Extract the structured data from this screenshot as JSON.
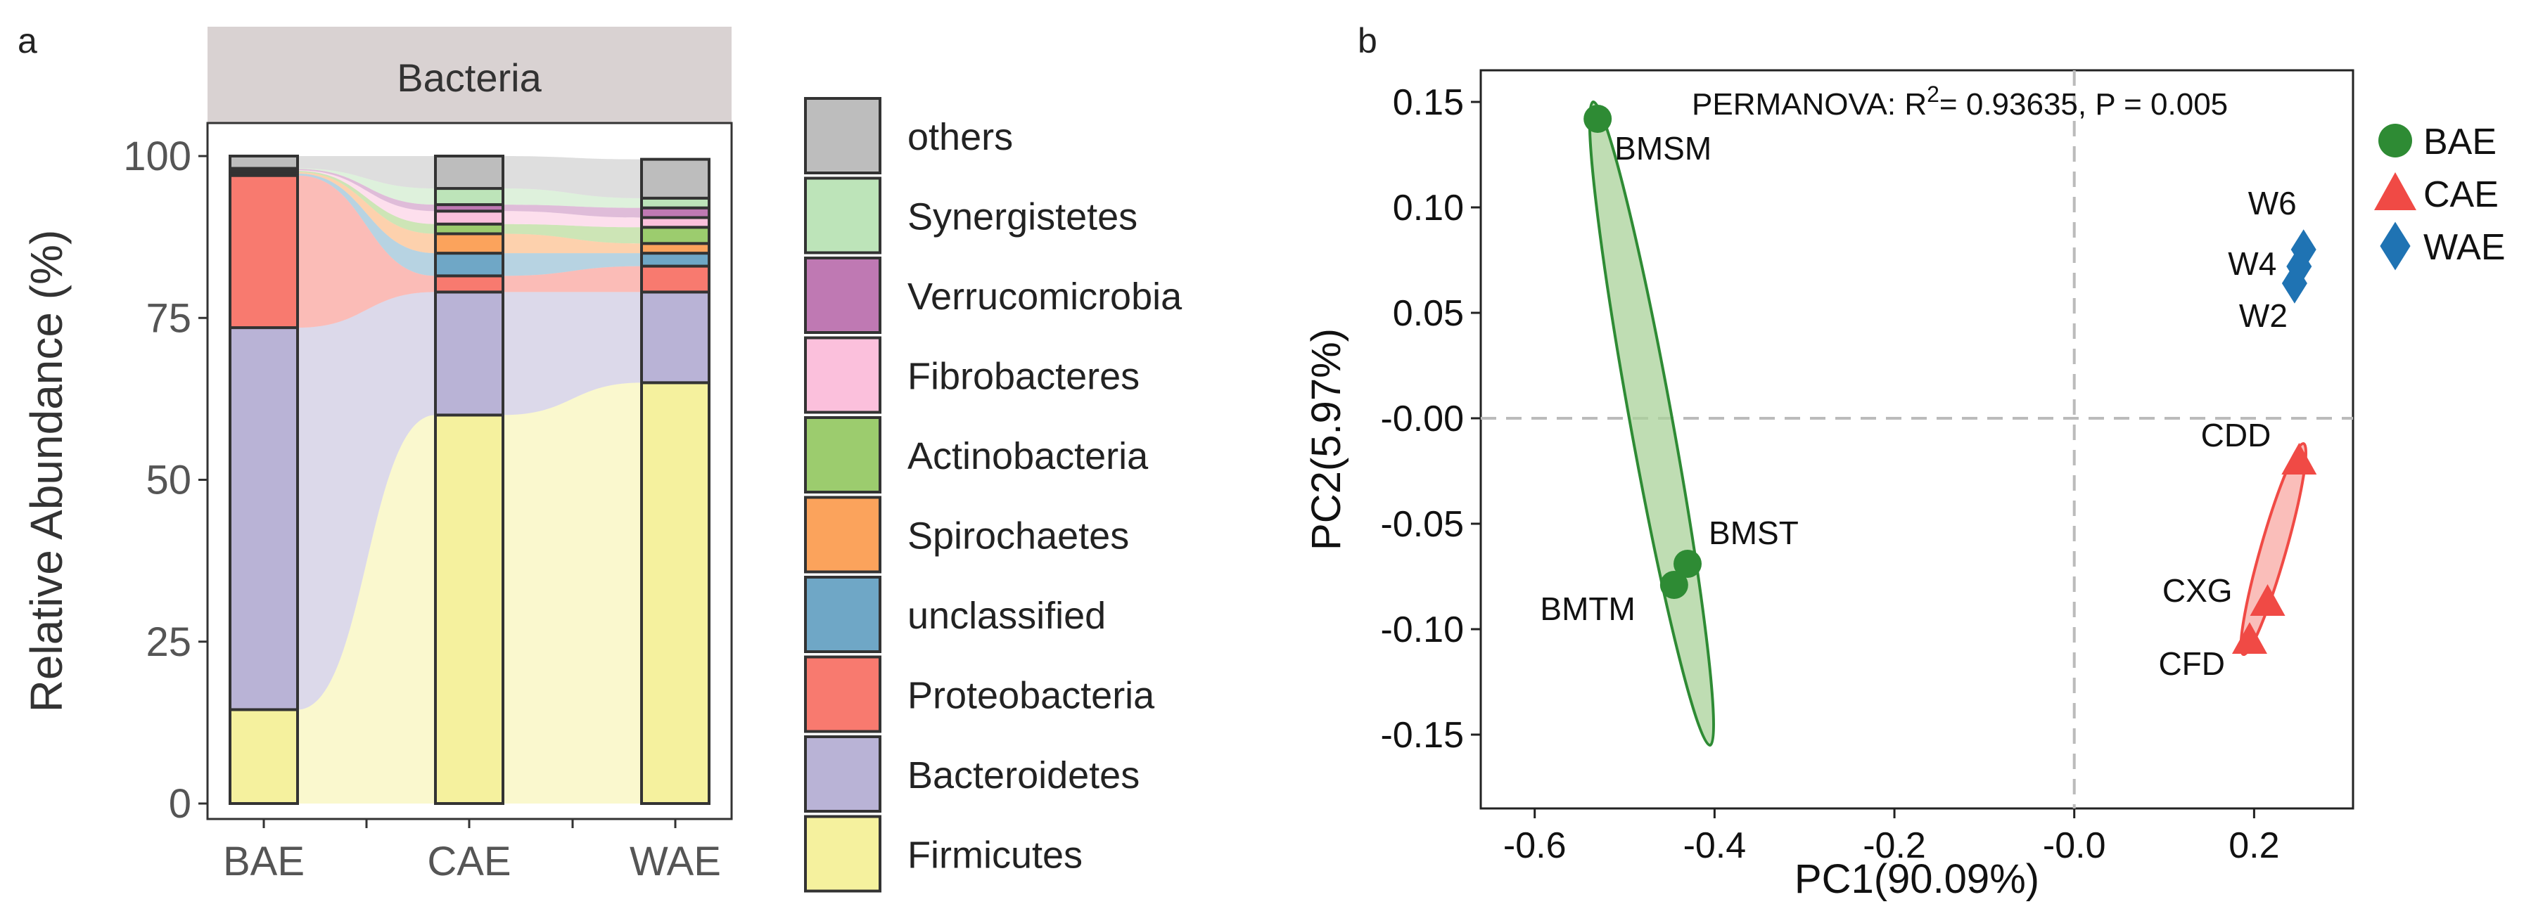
{
  "chart_data": [
    {
      "panel": "a",
      "type": "bar",
      "stacked": true,
      "facet_title": "Bacteria",
      "categories": [
        "BAE",
        "CAE",
        "WAE"
      ],
      "ylabel": "Relative Abundance (%)",
      "ylim": [
        0,
        100
      ],
      "yticks": [
        "0",
        "25",
        "50",
        "75",
        "100"
      ],
      "series": [
        {
          "name": "Firmicutes",
          "color": "#f5f19e",
          "values": [
            14.5,
            60,
            65
          ]
        },
        {
          "name": "Bacteroidetes",
          "color": "#b9b3d6",
          "values": [
            59,
            19,
            14
          ]
        },
        {
          "name": "Proteobacteria",
          "color": "#f87a6f",
          "values": [
            23.5,
            2.5,
            4
          ]
        },
        {
          "name": "unclassified",
          "color": "#6fa7c6",
          "values": [
            0.3,
            3.5,
            2
          ]
        },
        {
          "name": "Spirochaetes",
          "color": "#fba35c",
          "values": [
            0.2,
            3,
            1.5
          ]
        },
        {
          "name": "Actinobacteria",
          "color": "#9ccc6e",
          "values": [
            0.2,
            1.5,
            2.5
          ]
        },
        {
          "name": "Fibrobacteres",
          "color": "#fbc0dc",
          "values": [
            0.1,
            2,
            1.5
          ]
        },
        {
          "name": "Verrucomicrobia",
          "color": "#bf79b3",
          "values": [
            0.2,
            1,
            1.5
          ]
        },
        {
          "name": "Synergistetes",
          "color": "#bde4b9",
          "values": [
            0.1,
            2.5,
            1.5
          ]
        },
        {
          "name": "others",
          "color": "#bdbdbd",
          "values": [
            1.9,
            5,
            6
          ]
        }
      ],
      "legend_order": [
        "others",
        "Synergistetes",
        "Verrucomicrobia",
        "Fibrobacteres",
        "Actinobacteria",
        "Spirochaetes",
        "unclassified",
        "Proteobacteria",
        "Bacteroidetes",
        "Firmicutes"
      ]
    },
    {
      "panel": "b",
      "type": "scatter",
      "xlabel": "PC1(90.09%)",
      "ylabel": "PC2(5.97%)",
      "xlim": [
        -0.66,
        0.31
      ],
      "ylim": [
        -0.185,
        0.165
      ],
      "xticks": [
        -0.6,
        -0.4,
        -0.2,
        0.0,
        0.2
      ],
      "xtick_labels": [
        "-0.6",
        "-0.4",
        "-0.2",
        "-0.0",
        "0.2"
      ],
      "yticks": [
        0.15,
        0.1,
        0.05,
        0.0,
        -0.05,
        -0.1,
        -0.15
      ],
      "ytick_labels": [
        "0.15",
        "0.10",
        "0.05",
        "-0.00",
        "-0.05",
        "-0.10",
        "-0.15"
      ],
      "annotation": {
        "prefix": "PERMANOVA: R",
        "sup": "2",
        "suffix": "= 0.93635, P = 0.005"
      },
      "groups": [
        {
          "name": "BAE",
          "color": "#2e8b34",
          "fill": "#a9d19a",
          "marker": "circle",
          "points": [
            {
              "label": "BMSM",
              "x": -0.53,
              "y": 0.142
            },
            {
              "label": "BMST",
              "x": -0.43,
              "y": -0.069
            },
            {
              "label": "BMTM",
              "x": -0.445,
              "y": -0.079
            }
          ]
        },
        {
          "name": "CAE",
          "color": "#f04a45",
          "fill": "#f8a8a3",
          "marker": "triangle",
          "points": [
            {
              "label": "CDD",
              "x": 0.25,
              "y": -0.02
            },
            {
              "label": "CXG",
              "x": 0.215,
              "y": -0.087
            },
            {
              "label": "CFD",
              "x": 0.195,
              "y": -0.105
            }
          ]
        },
        {
          "name": "WAE",
          "color": "#1f73b3",
          "fill": "#8fb8da",
          "marker": "diamond",
          "points": [
            {
              "label": "W6",
              "x": 0.255,
              "y": 0.08
            },
            {
              "label": "W4",
              "x": 0.25,
              "y": 0.072
            },
            {
              "label": "W2",
              "x": 0.245,
              "y": 0.064
            }
          ]
        }
      ]
    }
  ]
}
